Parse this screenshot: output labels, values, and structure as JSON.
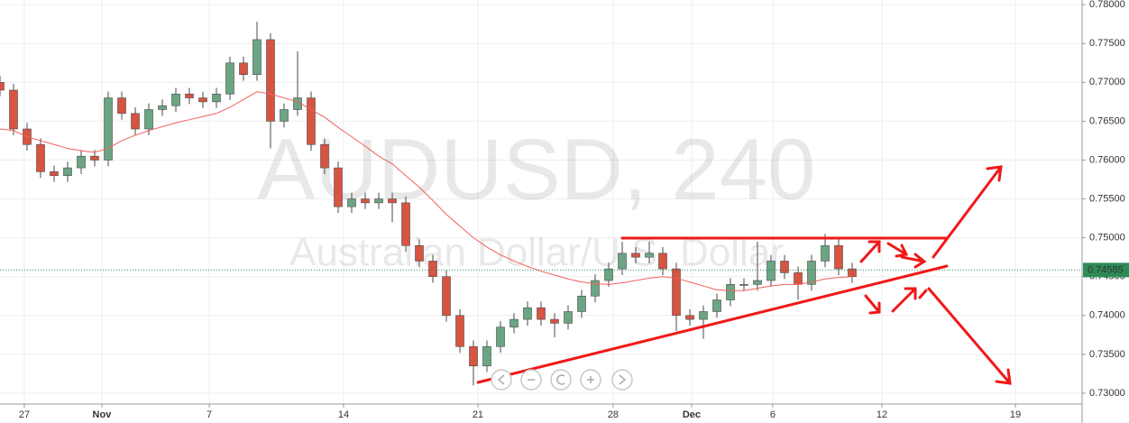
{
  "chart_data": {
    "type": "candlestick",
    "title": "AUDUSD, 240",
    "subtitle": "Australian Dollar/U.S. Dollar",
    "x": [
      0,
      1,
      2,
      3,
      4,
      5,
      6,
      7,
      8,
      9,
      10,
      11,
      12,
      13,
      14,
      15,
      16,
      17,
      18,
      19,
      20,
      21,
      22,
      23,
      24,
      25,
      26,
      27,
      28,
      29,
      30,
      31,
      32,
      33,
      34,
      35,
      36,
      37,
      38,
      39,
      40,
      41,
      42,
      43,
      44,
      45,
      46,
      47,
      48,
      49,
      50,
      51,
      52,
      53,
      54,
      55,
      56,
      57,
      58,
      59,
      60,
      61,
      62,
      63
    ],
    "open": [
      0.77,
      0.769,
      0.764,
      0.762,
      0.7585,
      0.758,
      0.759,
      0.7605,
      0.76,
      0.768,
      0.766,
      0.764,
      0.7665,
      0.767,
      0.7685,
      0.768,
      0.7675,
      0.7685,
      0.7725,
      0.771,
      0.7755,
      0.765,
      0.7665,
      0.768,
      0.762,
      0.759,
      0.754,
      0.755,
      0.7545,
      0.755,
      0.7545,
      0.749,
      0.747,
      0.745,
      0.74,
      0.736,
      0.7335,
      0.736,
      0.7385,
      0.7395,
      0.741,
      0.7395,
      0.739,
      0.7405,
      0.7425,
      0.7445,
      0.746,
      0.748,
      0.7475,
      0.748,
      0.746,
      0.74,
      0.7395,
      0.7405,
      0.742,
      0.744,
      0.744,
      0.7445,
      0.747,
      0.7455,
      0.744,
      0.747,
      0.749,
      0.746
    ],
    "high": [
      0.7708,
      0.7698,
      0.7648,
      0.7628,
      0.7593,
      0.7598,
      0.7613,
      0.7613,
      0.7688,
      0.7688,
      0.7668,
      0.7673,
      0.7678,
      0.7693,
      0.7693,
      0.7688,
      0.7693,
      0.7733,
      0.7733,
      0.7778,
      0.7763,
      0.7673,
      0.774,
      0.7688,
      0.7628,
      0.7598,
      0.7558,
      0.7558,
      0.7558,
      0.7558,
      0.7553,
      0.7498,
      0.7478,
      0.7458,
      0.7408,
      0.7368,
      0.7368,
      0.7393,
      0.7403,
      0.7418,
      0.7418,
      0.7403,
      0.7413,
      0.7433,
      0.7453,
      0.7468,
      0.7495,
      0.7488,
      0.7495,
      0.7488,
      0.7468,
      0.7408,
      0.7413,
      0.7428,
      0.7448,
      0.7448,
      0.7495,
      0.7478,
      0.7478,
      0.7463,
      0.7478,
      0.7505,
      0.7498,
      0.7468
    ],
    "low": [
      0.7682,
      0.7632,
      0.7612,
      0.7577,
      0.7572,
      0.7572,
      0.7582,
      0.7592,
      0.7592,
      0.7652,
      0.7632,
      0.7632,
      0.7657,
      0.7662,
      0.7672,
      0.7667,
      0.7667,
      0.7677,
      0.7702,
      0.7702,
      0.7615,
      0.7642,
      0.7657,
      0.7612,
      0.7582,
      0.7532,
      0.7532,
      0.7537,
      0.7537,
      0.752,
      0.7482,
      0.7462,
      0.7442,
      0.7392,
      0.7352,
      0.731,
      0.7327,
      0.7352,
      0.7377,
      0.7387,
      0.7387,
      0.7372,
      0.7382,
      0.7397,
      0.7417,
      0.7437,
      0.7452,
      0.7467,
      0.7467,
      0.7452,
      0.738,
      0.7387,
      0.737,
      0.7397,
      0.7412,
      0.7432,
      0.7432,
      0.7437,
      0.7447,
      0.742,
      0.7432,
      0.7462,
      0.7452,
      0.7442
    ],
    "close": [
      0.769,
      0.764,
      0.762,
      0.7585,
      0.758,
      0.759,
      0.7605,
      0.76,
      0.768,
      0.766,
      0.764,
      0.7665,
      0.767,
      0.7685,
      0.768,
      0.7675,
      0.7685,
      0.7725,
      0.771,
      0.7755,
      0.765,
      0.7665,
      0.768,
      0.762,
      0.759,
      0.754,
      0.755,
      0.7545,
      0.755,
      0.7545,
      0.749,
      0.747,
      0.745,
      0.74,
      0.736,
      0.7335,
      0.736,
      0.7385,
      0.7395,
      0.741,
      0.7395,
      0.739,
      0.7405,
      0.7425,
      0.7445,
      0.746,
      0.748,
      0.7475,
      0.748,
      0.746,
      0.74,
      0.7395,
      0.7405,
      0.742,
      0.744,
      0.744,
      0.7445,
      0.747,
      0.7455,
      0.744,
      0.747,
      0.749,
      0.746,
      0.745
    ],
    "ma_values": [
      0.764,
      0.7638,
      0.763,
      0.7625,
      0.762,
      0.7615,
      0.7612,
      0.761,
      0.7615,
      0.7625,
      0.7632,
      0.7638,
      0.7643,
      0.7648,
      0.7652,
      0.7656,
      0.766,
      0.7668,
      0.7678,
      0.7688,
      0.7685,
      0.768,
      0.7675,
      0.7665,
      0.7655,
      0.7642,
      0.763,
      0.7618,
      0.7605,
      0.7595,
      0.758,
      0.7565,
      0.7548,
      0.753,
      0.7515,
      0.75,
      0.7488,
      0.7478,
      0.747,
      0.7463,
      0.7457,
      0.7452,
      0.7447,
      0.7443,
      0.7441,
      0.744,
      0.7442,
      0.7445,
      0.7448,
      0.745,
      0.7448,
      0.7443,
      0.7438,
      0.7433,
      0.7432,
      0.7432,
      0.7435,
      0.7438,
      0.744,
      0.744,
      0.7443,
      0.7447,
      0.7449,
      0.745
    ],
    "ma_color": "#f0605a",
    "up_color": "#6ba583",
    "down_color": "#d75442",
    "wick_color": "#4a4a4a",
    "last_price": 0.74585,
    "last_price_color": "#2e8b57",
    "xlim": [
      0,
      80
    ],
    "ylim": [
      0.7286,
      0.7806
    ],
    "xticks": [
      {
        "value": 1.8,
        "label": "27"
      },
      {
        "value": 7.53,
        "label": "Nov"
      },
      {
        "value": 15.47,
        "label": "7"
      },
      {
        "value": 25.4,
        "label": "14"
      },
      {
        "value": 35.33,
        "label": "21"
      },
      {
        "value": 45.33,
        "label": "28"
      },
      {
        "value": 51.13,
        "label": "Dec"
      },
      {
        "value": 57.13,
        "label": "6"
      },
      {
        "value": 65.2,
        "label": "12"
      },
      {
        "value": 75.07,
        "label": "19"
      }
    ],
    "yticks": [
      {
        "value": 0.73,
        "label": "0.73000"
      },
      {
        "value": 0.735,
        "label": "0.73500"
      },
      {
        "value": 0.74,
        "label": "0.74000"
      },
      {
        "value": 0.745,
        "label": "0.74500"
      },
      {
        "value": 0.75,
        "label": "0.75000"
      },
      {
        "value": 0.755,
        "label": "0.75500"
      },
      {
        "value": 0.76,
        "label": "0.76000"
      },
      {
        "value": 0.765,
        "label": "0.76500"
      },
      {
        "value": 0.77,
        "label": "0.77000"
      },
      {
        "value": 0.775,
        "label": "0.77500"
      },
      {
        "value": 0.78,
        "label": "0.78000"
      }
    ],
    "grid": true
  }
}
